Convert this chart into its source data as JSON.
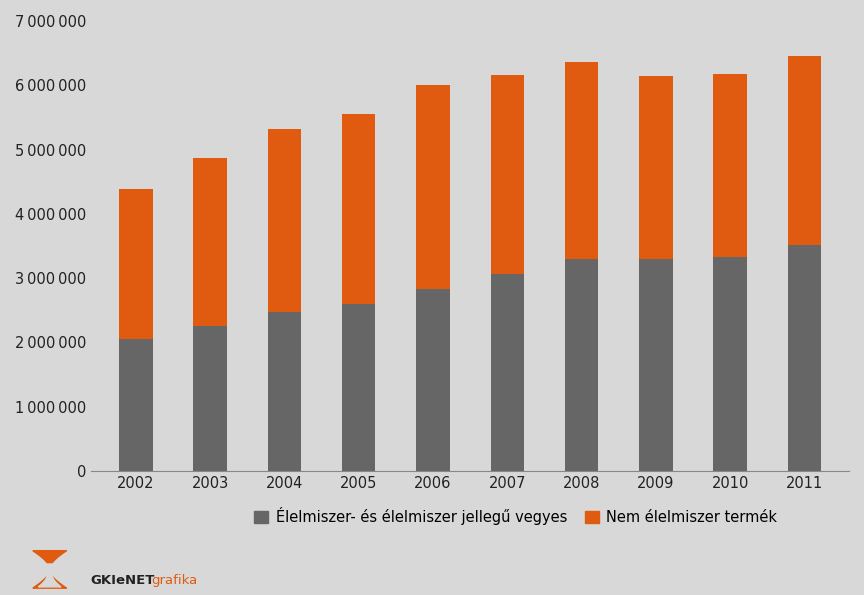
{
  "years": [
    2002,
    2003,
    2004,
    2005,
    2006,
    2007,
    2008,
    2009,
    2010,
    2011
  ],
  "food_values": [
    2050000,
    2250000,
    2480000,
    2600000,
    2830000,
    3060000,
    3300000,
    3300000,
    3330000,
    3510000
  ],
  "nonfood_values": [
    2330000,
    2620000,
    2840000,
    2960000,
    3170000,
    3100000,
    3060000,
    2840000,
    2850000,
    2950000
  ],
  "food_color": "#666666",
  "nonfood_color": "#e05a10",
  "background_color": "#d8d8d8",
  "plot_bg_color": "#d8d8d8",
  "ylim": [
    0,
    7000000
  ],
  "yticks": [
    0,
    1000000,
    2000000,
    3000000,
    4000000,
    5000000,
    6000000,
    7000000
  ],
  "food_label": "Élelmiszer- és élelmiszer jellegű vegyes",
  "nonfood_label": "Nem élelmiszer termék",
  "logo_text_gki": "GKIeNET",
  "logo_text_grafika": "grafika",
  "bar_width": 0.45
}
